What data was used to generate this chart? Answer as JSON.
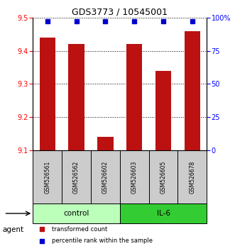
{
  "title": "GDS3773 / 10545001",
  "samples": [
    "GSM526561",
    "GSM526562",
    "GSM526602",
    "GSM526603",
    "GSM526605",
    "GSM526678"
  ],
  "bar_values": [
    9.44,
    9.42,
    9.14,
    9.42,
    9.34,
    9.46
  ],
  "percentile_values": [
    97,
    97,
    97,
    97,
    97,
    97
  ],
  "ylim_left": [
    9.1,
    9.5
  ],
  "ylim_right": [
    0,
    100
  ],
  "yticks_left": [
    9.1,
    9.2,
    9.3,
    9.4,
    9.5
  ],
  "yticks_right": [
    0,
    25,
    50,
    75,
    100
  ],
  "bar_color": "#bb1111",
  "dot_color": "#0000cc",
  "bar_width": 0.55,
  "control_color": "#bbffbb",
  "il6_color": "#33cc33",
  "sample_box_color": "#cccccc",
  "legend_bar_label": "transformed count",
  "legend_dot_label": "percentile rank within the sample",
  "agent_label": "agent",
  "control_label": "control",
  "il6_label": "IL-6"
}
